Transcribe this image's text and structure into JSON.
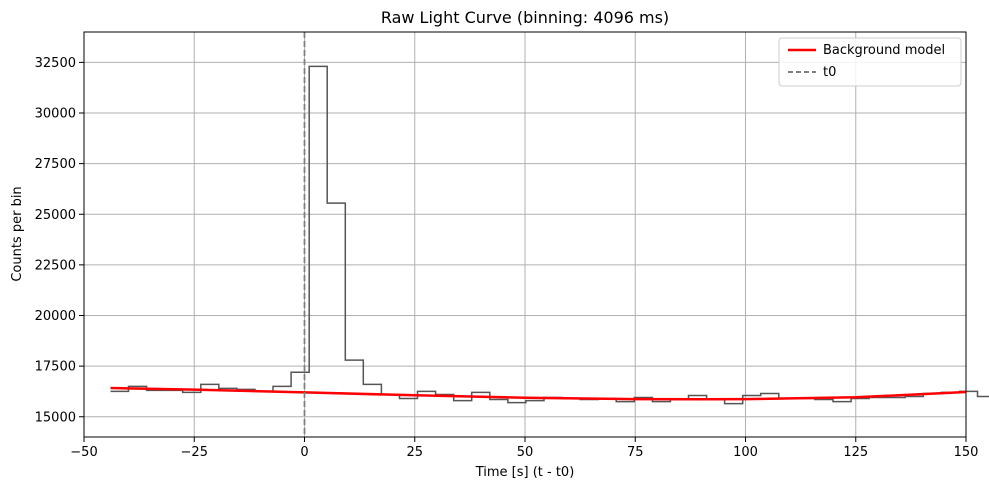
{
  "chart_data": {
    "type": "line",
    "title": "Raw Light Curve (binning: 4096 ms)",
    "xlabel": "Time [s] (t - t0)",
    "ylabel": "Counts per bin",
    "xlim": [
      -50,
      150
    ],
    "ylim": [
      14000,
      34000
    ],
    "x_ticks": [
      "−50",
      "−25",
      "0",
      "25",
      "50",
      "75",
      "100",
      "125",
      "150"
    ],
    "y_ticks": [
      "15000",
      "17500",
      "20000",
      "22500",
      "25000",
      "27500",
      "30000",
      "32500"
    ],
    "grid": true,
    "legend_position": "top-right",
    "series": [
      {
        "name": "",
        "style": "steps",
        "color": "#555555",
        "bin_width": 4.096,
        "bin_edges_start": -44.0,
        "values": [
          16250,
          16500,
          16300,
          16300,
          16200,
          16600,
          16400,
          16350,
          16250,
          16500,
          17200,
          32300,
          25550,
          17800,
          16600,
          16100,
          15900,
          16250,
          16100,
          15800,
          16200,
          15850,
          15700,
          15800,
          15950,
          15900,
          15850,
          15900,
          15750,
          15950,
          15750,
          15850,
          16050,
          15850,
          15650,
          16050,
          16150,
          15900,
          15900,
          15850,
          15750,
          15900,
          15950,
          15950,
          16000,
          16150,
          16200,
          16250,
          16000,
          16150
        ]
      },
      {
        "name": "Background model",
        "style": "line",
        "color": "#ff0000",
        "x": [
          -44,
          -25,
          0,
          25,
          50,
          75,
          90,
          100,
          125,
          150
        ],
        "values": [
          16420,
          16340,
          16200,
          16060,
          15940,
          15870,
          15860,
          15870,
          15960,
          16220
        ]
      },
      {
        "name": "t0",
        "style": "vline-dashed",
        "color": "#808080",
        "x_value": 0
      }
    ]
  }
}
